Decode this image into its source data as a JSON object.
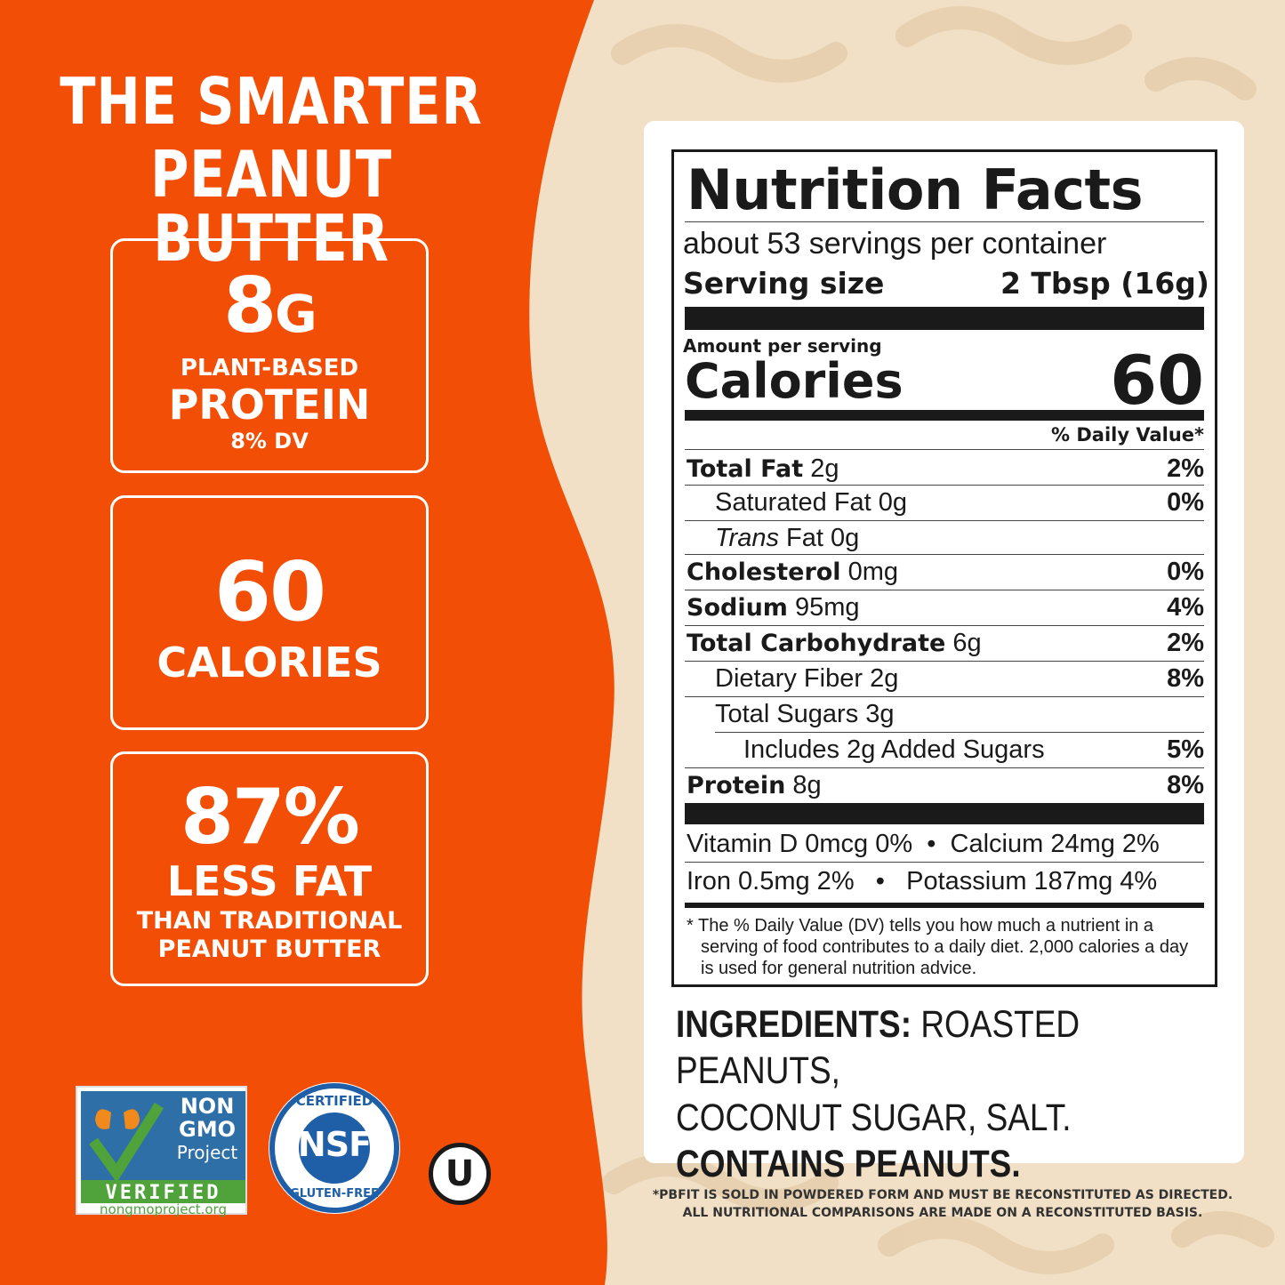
{
  "colors": {
    "orange": "#f24e05",
    "cream": "#f1e0c6",
    "peanut_pattern": "#e6cfae",
    "white": "#ffffff",
    "ink": "#1a1a1a"
  },
  "headline": {
    "line1": "THE SMARTER",
    "line2": "PEANUT BUTTER"
  },
  "stats": [
    {
      "big": "8",
      "big_unit": "G",
      "line2": "PLANT-BASED",
      "line3": "PROTEIN",
      "line4": "8% DV"
    },
    {
      "big": "60",
      "line2": "CALORIES"
    },
    {
      "big": "87%",
      "line2": "LESS FAT",
      "line3": "THAN TRADITIONAL",
      "line4": "PEANUT BUTTER"
    }
  ],
  "nutrition": {
    "title": "Nutrition Facts",
    "servings": "about 53 servings per container",
    "serving_size_label": "Serving size",
    "serving_size_value": "2 Tbsp (16g)",
    "amount_per_serving": "Amount per serving",
    "calories_label": "Calories",
    "calories_value": "60",
    "dv_header": "% Daily Value*",
    "rows": [
      {
        "name": "Total Fat",
        "amount": "2g",
        "dv": "2%"
      },
      {
        "name": "Saturated Fat",
        "amount": "0g",
        "dv": "0%"
      },
      {
        "name": "Trans",
        "name_rest": "Fat",
        "amount": "0g",
        "dv": ""
      },
      {
        "name": "Cholesterol",
        "amount": "0mg",
        "dv": "0%"
      },
      {
        "name": "Sodium",
        "amount": "95mg",
        "dv": "4%"
      },
      {
        "name": "Total Carbohydrate",
        "amount": "6g",
        "dv": "2%"
      },
      {
        "name": "Dietary Fiber",
        "amount": "2g",
        "dv": "8%"
      },
      {
        "name": "Total Sugars",
        "amount": "3g",
        "dv": ""
      },
      {
        "name": "Includes 2g Added Sugars",
        "amount": "",
        "dv": "5%"
      },
      {
        "name": "Protein",
        "amount": "8g",
        "dv": "8%"
      }
    ],
    "vitamins": {
      "vitamin_d": "Vitamin D 0mcg 0%",
      "calcium": "Calcium 24mg 2%",
      "iron": "Iron 0.5mg 2%",
      "potassium": "Potassium 187mg 4%",
      "separator": "•"
    },
    "footnote_l1": "* The % Daily Value (DV) tells you how much a nutrient in a",
    "footnote_l2": "serving of food contributes to a daily diet. 2,000 calories a day",
    "footnote_l3": "is used for general nutrition advice."
  },
  "ingredients": {
    "label": "INGREDIENTS:",
    "line1": "ROASTED PEANUTS,",
    "line2": "COCONUT SUGAR, SALT.",
    "contains": "CONTAINS PEANUTS."
  },
  "disclaimer": {
    "line1": "*PBFIT IS SOLD IN POWDERED FORM AND MUST BE RECONSTITUTED AS DIRECTED.",
    "line2": "ALL NUTRITIONAL COMPARISONS ARE MADE ON A RECONSTITUTED BASIS."
  },
  "badges": {
    "nongmo": {
      "l1": "NON",
      "l2": "GMO",
      "l3": "Project",
      "l4": "VERIFIED",
      "l5": "nongmoproject.org",
      "icon": "butterfly-checkmark-icon"
    },
    "nsf": {
      "top": "CERTIFIED",
      "center": "NSF",
      "bottom": "GLUTEN-FREE"
    },
    "kosher": {
      "letter": "U"
    }
  }
}
